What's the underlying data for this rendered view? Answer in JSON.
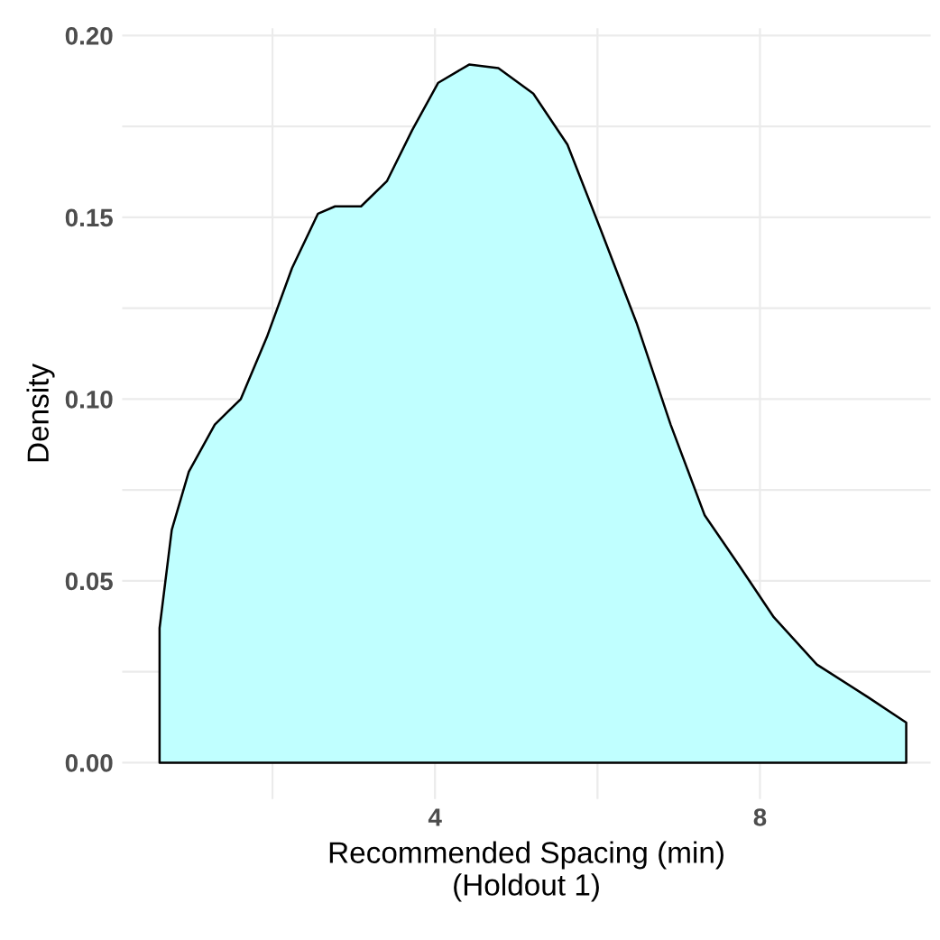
{
  "chart_data": {
    "type": "area",
    "xlabel": "Recommended Spacing (min)\n(Holdout 1)",
    "ylabel": "Density",
    "x": [
      0.61,
      0.76,
      0.97,
      1.29,
      1.61,
      1.93,
      2.24,
      2.56,
      2.77,
      3.09,
      3.41,
      3.72,
      4.04,
      4.42,
      4.78,
      5.21,
      5.63,
      6.05,
      6.48,
      6.9,
      7.32,
      7.75,
      8.17,
      8.7,
      9.33,
      9.8
    ],
    "series": [
      {
        "color": "#c0ffff",
        "values": [
          0.037,
          0.064,
          0.08,
          0.093,
          0.1,
          0.117,
          0.136,
          0.151,
          0.153,
          0.153,
          0.16,
          0.174,
          0.187,
          0.192,
          0.191,
          0.184,
          0.17,
          0.146,
          0.121,
          0.093,
          0.068,
          0.054,
          0.04,
          0.027,
          0.018,
          0.011
        ]
      }
    ],
    "xlim": [
      0.15,
      10.1
    ],
    "ylim": [
      -0.01,
      0.202
    ],
    "xticks": [
      {
        "value": 2,
        "label": null
      },
      4,
      {
        "value": 6,
        "label": null
      },
      8
    ],
    "yticks": [
      {
        "value": 0,
        "label": "0.00"
      },
      {
        "value": 0.025,
        "label": null
      },
      {
        "value": 0.05,
        "label": "0.05"
      },
      {
        "value": 0.075,
        "label": null
      },
      {
        "value": 0.1,
        "label": "0.10"
      },
      {
        "value": 0.125,
        "label": null
      },
      {
        "value": 0.15,
        "label": "0.15"
      },
      {
        "value": 0.175,
        "label": null
      },
      {
        "value": 0.2,
        "label": "0.20"
      }
    ],
    "grid": true
  }
}
